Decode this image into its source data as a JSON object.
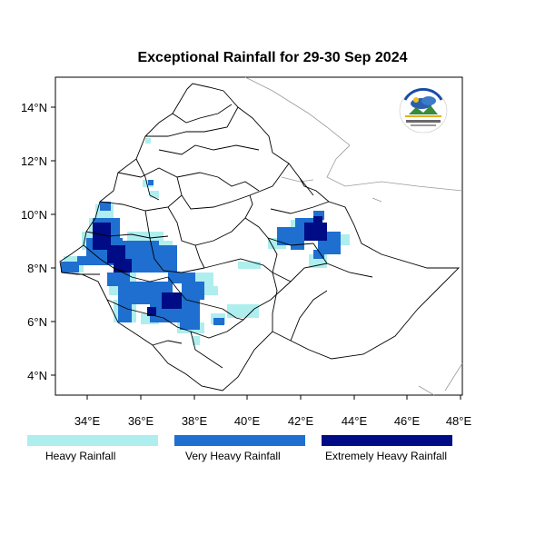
{
  "title": "Exceptional Rainfall for 29-30 Sep 2024",
  "axes": {
    "x_ticks": [
      "34°E",
      "36°E",
      "38°E",
      "40°E",
      "42°E",
      "44°E",
      "46°E",
      "48°E"
    ],
    "y_ticks": [
      "14°N",
      "12°N",
      "10°N",
      "8°N",
      "6°N",
      "4°N"
    ]
  },
  "legend": [
    {
      "label": "Heavy Rainfall",
      "color": "#aeeeee"
    },
    {
      "label": "Very Heavy Rainfall",
      "color": "#1e6fd0"
    },
    {
      "label": "Extremely Heavy Rainfall",
      "color": "#000c85"
    }
  ],
  "logo": {
    "name": "ethiopian-meteorology-institute-logo",
    "text": "Ethiopian Meteorology Institute"
  },
  "colors": {
    "heavy": "#aeeeee",
    "very_heavy": "#1e6fd0",
    "extreme": "#000c85",
    "border": "#000000",
    "neighbor": "#9a9a9a"
  }
}
